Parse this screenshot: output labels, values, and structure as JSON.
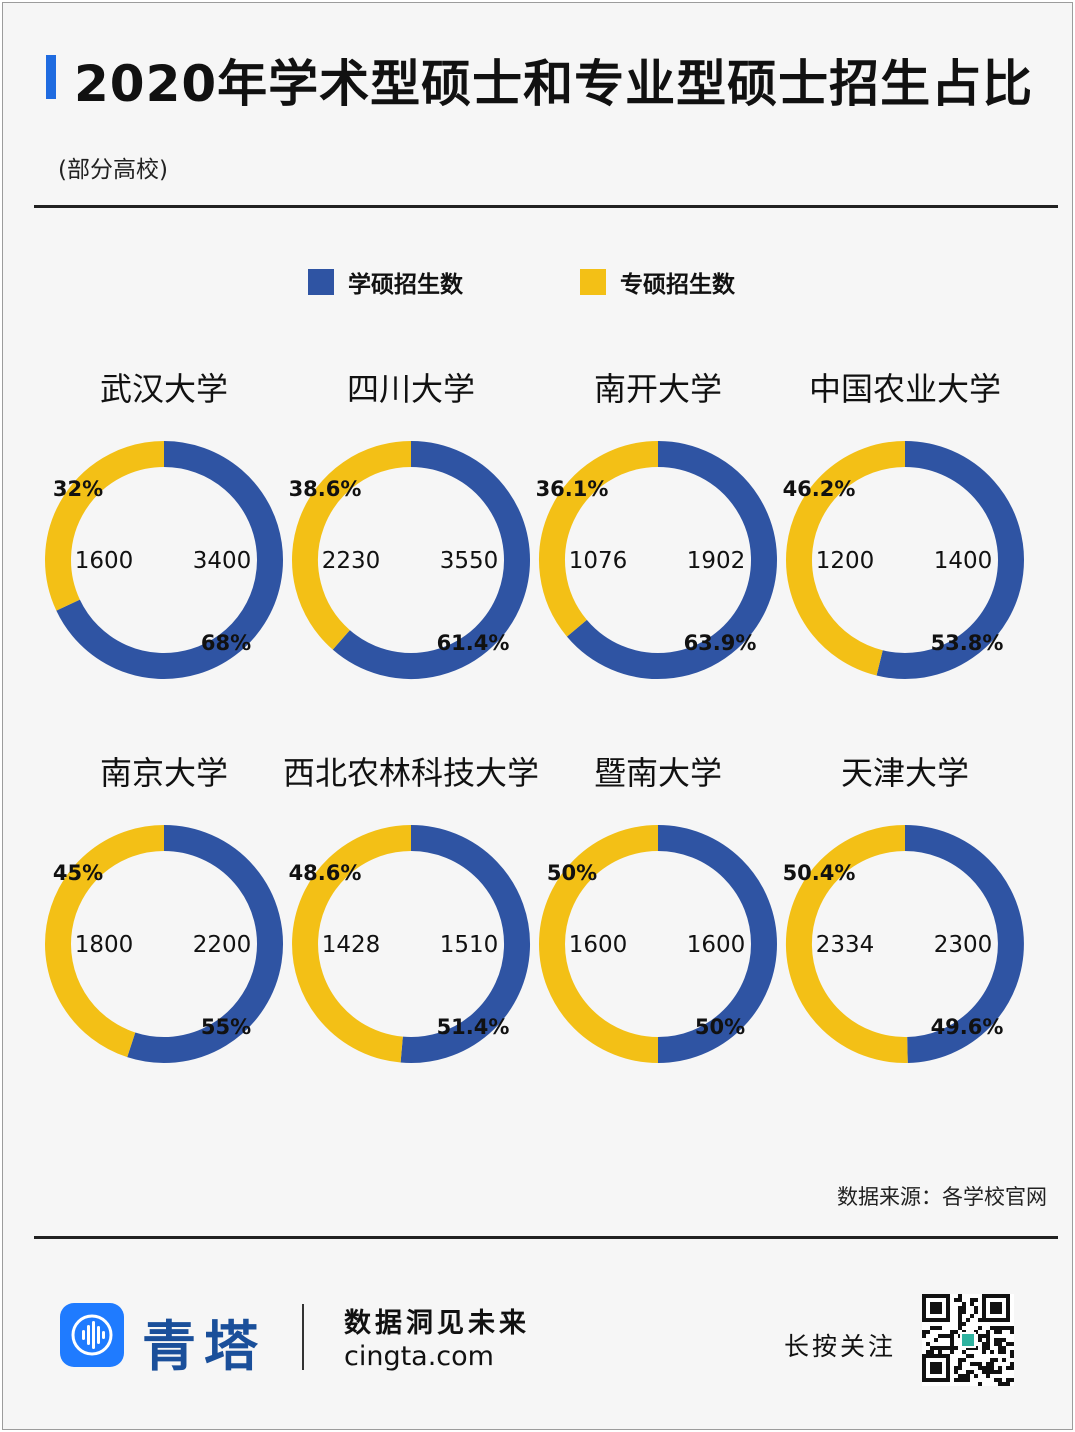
{
  "header": {
    "title": "2020年学术型硕士和专业型硕士招生占比",
    "subtitle": "(部分高校)"
  },
  "legend": {
    "academic_label": "学硕招生数",
    "professional_label": "专硕招生数"
  },
  "colors": {
    "academic": "#2f54a3",
    "professional": "#f3c016",
    "accent": "#1f6be0"
  },
  "chart_data": {
    "type": "pie",
    "variant": "donut",
    "series_names": [
      "学硕招生数",
      "专硕招生数"
    ],
    "charts": [
      {
        "university": "武汉大学",
        "academic": 3400,
        "professional": 1600,
        "academic_pct": "68%",
        "professional_pct": "32%"
      },
      {
        "university": "四川大学",
        "academic": 3550,
        "professional": 2230,
        "academic_pct": "61.4%",
        "professional_pct": "38.6%"
      },
      {
        "university": "南开大学",
        "academic": 1902,
        "professional": 1076,
        "academic_pct": "63.9%",
        "professional_pct": "36.1%"
      },
      {
        "university": "中国农业大学",
        "academic": 1400,
        "professional": 1200,
        "academic_pct": "53.8%",
        "professional_pct": "46.2%"
      },
      {
        "university": "南京大学",
        "academic": 2200,
        "professional": 1800,
        "academic_pct": "55%",
        "professional_pct": "45%"
      },
      {
        "university": "西北农林科技大学",
        "academic": 1510,
        "professional": 1428,
        "academic_pct": "51.4%",
        "professional_pct": "48.6%"
      },
      {
        "university": "暨南大学",
        "academic": 1600,
        "professional": 1600,
        "academic_pct": "50%",
        "professional_pct": "50%"
      },
      {
        "university": "天津大学",
        "academic": 2300,
        "professional": 2334,
        "academic_pct": "49.6%",
        "professional_pct": "50.4%"
      }
    ]
  },
  "footer": {
    "source": "数据来源：各学校官网",
    "brand": "青塔",
    "slogan": "数据洞见未来",
    "website": "cingta.com",
    "follow": "长按关注",
    "logo_icon": "soundwave-icon",
    "qr_icon": "qr-code-icon"
  }
}
